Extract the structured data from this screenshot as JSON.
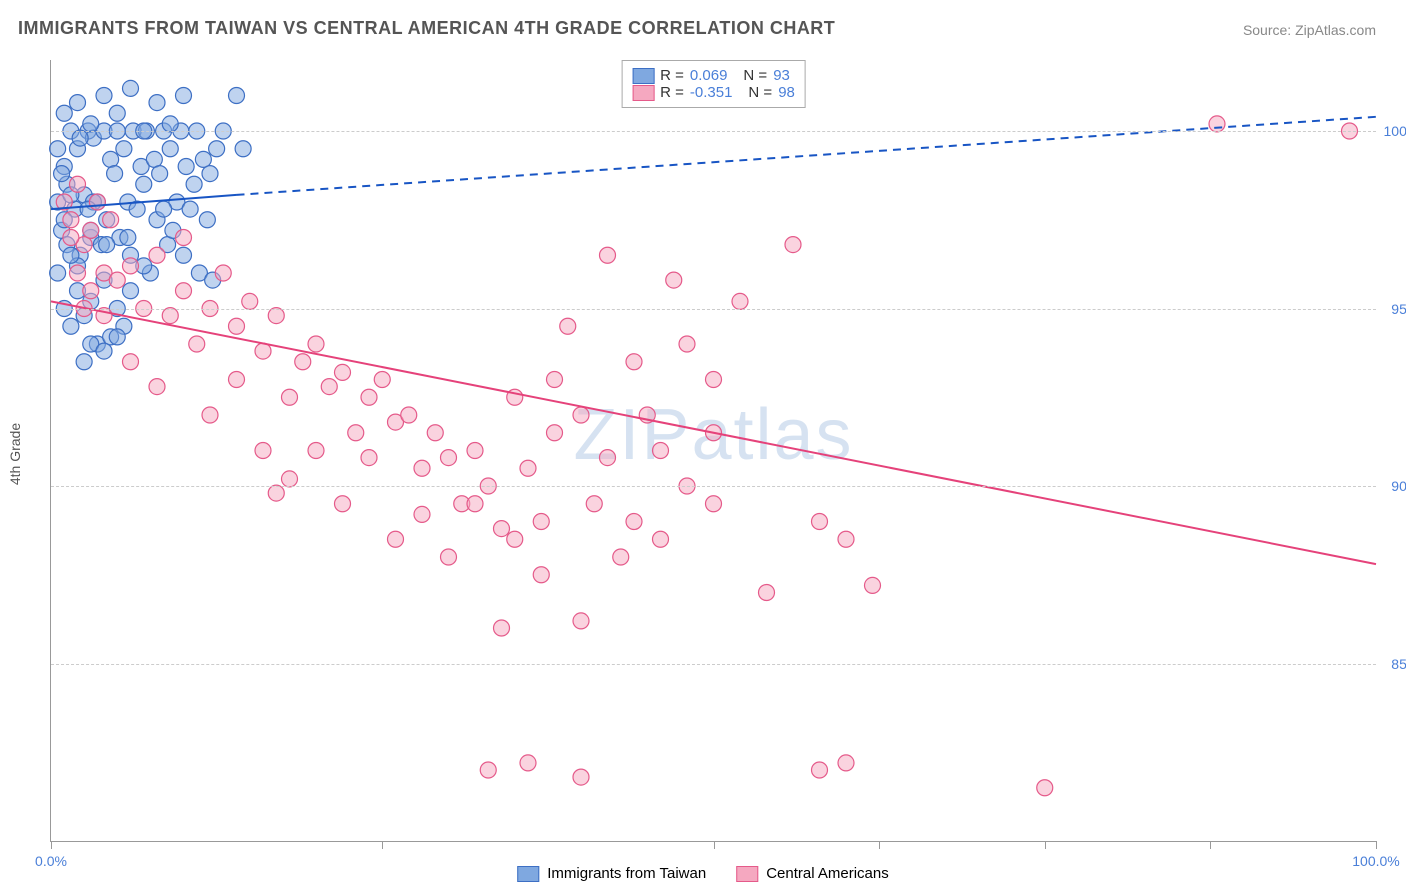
{
  "title": "IMMIGRANTS FROM TAIWAN VS CENTRAL AMERICAN 4TH GRADE CORRELATION CHART",
  "source": "Source: ZipAtlas.com",
  "watermark": "ZIPatlas",
  "y_axis_label": "4th Grade",
  "chart": {
    "type": "scatter",
    "xlim": [
      0,
      100
    ],
    "ylim": [
      80,
      102
    ],
    "x_tick_positions": [
      0,
      25,
      50,
      62.5,
      75,
      87.5,
      100
    ],
    "x_tick_labels_shown": {
      "0": "0.0%",
      "100": "100.0%"
    },
    "y_gridlines": [
      85,
      90,
      95,
      100
    ],
    "y_tick_labels": {
      "85": "85.0%",
      "90": "90.0%",
      "95": "95.0%",
      "100": "100.0%"
    },
    "background_color": "#ffffff",
    "grid_color": "#cccccc",
    "axis_color": "#999999",
    "tick_label_color": "#4a7fd8",
    "marker_radius": 8,
    "marker_opacity": 0.5,
    "marker_stroke_width": 1.2,
    "series": [
      {
        "name": "Immigrants from Taiwan",
        "fill_color": "#7fa8e0",
        "stroke_color": "#3d6fc4",
        "R": "0.069",
        "N": "93",
        "trendline": {
          "x1": 0,
          "y1": 97.8,
          "x2": 14,
          "y2": 98.2,
          "dash_x2": 100,
          "dash_y2": 100.4,
          "color": "#1855c4",
          "width": 2
        },
        "points": [
          [
            0.5,
            98.0
          ],
          [
            0.8,
            97.2
          ],
          [
            1.0,
            99.0
          ],
          [
            1.2,
            98.5
          ],
          [
            1.5,
            100.0
          ],
          [
            1.8,
            97.8
          ],
          [
            2.0,
            99.5
          ],
          [
            2.2,
            96.5
          ],
          [
            2.5,
            98.2
          ],
          [
            2.8,
            100.0
          ],
          [
            3.0,
            97.0
          ],
          [
            3.2,
            99.8
          ],
          [
            3.5,
            98.0
          ],
          [
            3.8,
            96.8
          ],
          [
            4.0,
            100.0
          ],
          [
            4.2,
            97.5
          ],
          [
            4.5,
            99.2
          ],
          [
            4.8,
            98.8
          ],
          [
            5.0,
            100.0
          ],
          [
            5.2,
            97.0
          ],
          [
            5.5,
            99.5
          ],
          [
            5.8,
            98.0
          ],
          [
            6.0,
            96.5
          ],
          [
            6.2,
            100.0
          ],
          [
            6.5,
            97.8
          ],
          [
            6.8,
            99.0
          ],
          [
            7.0,
            98.5
          ],
          [
            7.2,
            100.0
          ],
          [
            7.5,
            96.0
          ],
          [
            7.8,
            99.2
          ],
          [
            8.0,
            97.5
          ],
          [
            8.2,
            98.8
          ],
          [
            8.5,
            100.0
          ],
          [
            8.8,
            96.8
          ],
          [
            9.0,
            99.5
          ],
          [
            9.2,
            97.2
          ],
          [
            9.5,
            98.0
          ],
          [
            9.8,
            100.0
          ],
          [
            10.0,
            96.5
          ],
          [
            10.2,
            99.0
          ],
          [
            10.5,
            97.8
          ],
          [
            10.8,
            98.5
          ],
          [
            11.0,
            100.0
          ],
          [
            11.2,
            96.0
          ],
          [
            11.5,
            99.2
          ],
          [
            11.8,
            97.5
          ],
          [
            12.0,
            98.8
          ],
          [
            12.2,
            95.8
          ],
          [
            12.5,
            99.5
          ],
          [
            1.0,
            95.0
          ],
          [
            1.5,
            94.5
          ],
          [
            2.0,
            95.5
          ],
          [
            2.5,
            94.8
          ],
          [
            3.0,
            95.2
          ],
          [
            3.5,
            94.0
          ],
          [
            4.0,
            95.8
          ],
          [
            4.5,
            94.2
          ],
          [
            5.0,
            95.0
          ],
          [
            5.5,
            94.5
          ],
          [
            6.0,
            95.5
          ],
          [
            1.0,
            100.5
          ],
          [
            2.0,
            100.8
          ],
          [
            3.0,
            100.2
          ],
          [
            4.0,
            101.0
          ],
          [
            5.0,
            100.5
          ],
          [
            6.0,
            101.2
          ],
          [
            7.0,
            100.0
          ],
          [
            8.0,
            100.8
          ],
          [
            9.0,
            100.2
          ],
          [
            10.0,
            101.0
          ],
          [
            0.5,
            96.0
          ],
          [
            1.2,
            96.8
          ],
          [
            2.0,
            96.2
          ],
          [
            3.0,
            97.2
          ],
          [
            0.8,
            98.8
          ],
          [
            1.5,
            98.2
          ],
          [
            2.2,
            99.8
          ],
          [
            3.2,
            98.0
          ],
          [
            0.5,
            99.5
          ],
          [
            1.0,
            97.5
          ],
          [
            14.0,
            101.0
          ],
          [
            13.0,
            100.0
          ],
          [
            14.5,
            99.5
          ],
          [
            2.5,
            93.5
          ],
          [
            3.0,
            94.0
          ],
          [
            4.0,
            93.8
          ],
          [
            5.0,
            94.2
          ],
          [
            1.5,
            96.5
          ],
          [
            2.8,
            97.8
          ],
          [
            4.2,
            96.8
          ],
          [
            5.8,
            97.0
          ],
          [
            7.0,
            96.2
          ],
          [
            8.5,
            97.8
          ]
        ]
      },
      {
        "name": "Central Americans",
        "fill_color": "#f5a8c0",
        "stroke_color": "#e55a8a",
        "R": "-0.351",
        "N": "98",
        "trendline": {
          "x1": 0,
          "y1": 95.2,
          "x2": 100,
          "y2": 87.8,
          "color": "#e5427a",
          "width": 2
        },
        "points": [
          [
            1.0,
            98.0
          ],
          [
            1.5,
            97.5
          ],
          [
            2.0,
            98.5
          ],
          [
            2.5,
            96.8
          ],
          [
            3.0,
            97.2
          ],
          [
            3.5,
            98.0
          ],
          [
            4.0,
            96.0
          ],
          [
            4.5,
            97.5
          ],
          [
            5.0,
            95.8
          ],
          [
            6.0,
            96.2
          ],
          [
            7.0,
            95.0
          ],
          [
            8.0,
            96.5
          ],
          [
            9.0,
            94.8
          ],
          [
            10.0,
            95.5
          ],
          [
            11.0,
            94.0
          ],
          [
            12.0,
            95.0
          ],
          [
            13.0,
            96.0
          ],
          [
            14.0,
            94.5
          ],
          [
            15.0,
            95.2
          ],
          [
            16.0,
            93.8
          ],
          [
            17.0,
            94.8
          ],
          [
            18.0,
            92.5
          ],
          [
            19.0,
            93.5
          ],
          [
            20.0,
            94.0
          ],
          [
            21.0,
            92.8
          ],
          [
            22.0,
            93.2
          ],
          [
            23.0,
            91.5
          ],
          [
            24.0,
            92.5
          ],
          [
            25.0,
            93.0
          ],
          [
            26.0,
            91.8
          ],
          [
            27.0,
            92.0
          ],
          [
            28.0,
            90.5
          ],
          [
            29.0,
            91.5
          ],
          [
            30.0,
            90.8
          ],
          [
            31.0,
            89.5
          ],
          [
            32.0,
            91.0
          ],
          [
            33.0,
            90.0
          ],
          [
            34.0,
            88.8
          ],
          [
            35.0,
            92.5
          ],
          [
            36.0,
            90.5
          ],
          [
            37.0,
            89.0
          ],
          [
            38.0,
            91.5
          ],
          [
            39.0,
            94.5
          ],
          [
            40.0,
            92.0
          ],
          [
            17.0,
            89.8
          ],
          [
            18.0,
            90.2
          ],
          [
            20.0,
            91.0
          ],
          [
            22.0,
            89.5
          ],
          [
            24.0,
            90.8
          ],
          [
            26.0,
            88.5
          ],
          [
            28.0,
            89.2
          ],
          [
            30.0,
            88.0
          ],
          [
            32.0,
            89.5
          ],
          [
            34.0,
            86.0
          ],
          [
            40.0,
            86.2
          ],
          [
            35.0,
            88.5
          ],
          [
            37.0,
            87.5
          ],
          [
            41.0,
            89.5
          ],
          [
            42.0,
            96.5
          ],
          [
            44.0,
            89.0
          ],
          [
            48.0,
            94.0
          ],
          [
            50.0,
            89.5
          ],
          [
            52.0,
            95.2
          ],
          [
            42.0,
            90.8
          ],
          [
            44.0,
            93.5
          ],
          [
            46.0,
            91.0
          ],
          [
            48.0,
            90.0
          ],
          [
            50.0,
            91.5
          ],
          [
            54.0,
            87.0
          ],
          [
            56.0,
            96.8
          ],
          [
            58.0,
            89.0
          ],
          [
            60.0,
            88.5
          ],
          [
            47.0,
            95.8
          ],
          [
            33.0,
            82.0
          ],
          [
            36.0,
            82.2
          ],
          [
            40.0,
            81.8
          ],
          [
            58.0,
            82.0
          ],
          [
            60.0,
            82.2
          ],
          [
            75.0,
            81.5
          ],
          [
            62.0,
            87.2
          ],
          [
            2.0,
            96.0
          ],
          [
            3.0,
            95.5
          ],
          [
            4.0,
            94.8
          ],
          [
            6.0,
            93.5
          ],
          [
            8.0,
            92.8
          ],
          [
            1.5,
            97.0
          ],
          [
            2.5,
            95.0
          ],
          [
            10.0,
            97.0
          ],
          [
            12.0,
            92.0
          ],
          [
            14.0,
            93.0
          ],
          [
            16.0,
            91.0
          ],
          [
            88.0,
            100.2
          ],
          [
            98.0,
            100.0
          ],
          [
            50.0,
            93.0
          ],
          [
            45.0,
            92.0
          ],
          [
            38.0,
            93.0
          ],
          [
            43.0,
            88.0
          ],
          [
            46.0,
            88.5
          ]
        ]
      }
    ]
  },
  "legend": {
    "label_R": "R  =",
    "label_N": "N  =",
    "bottom_items": [
      "Immigrants from Taiwan",
      "Central Americans"
    ]
  }
}
